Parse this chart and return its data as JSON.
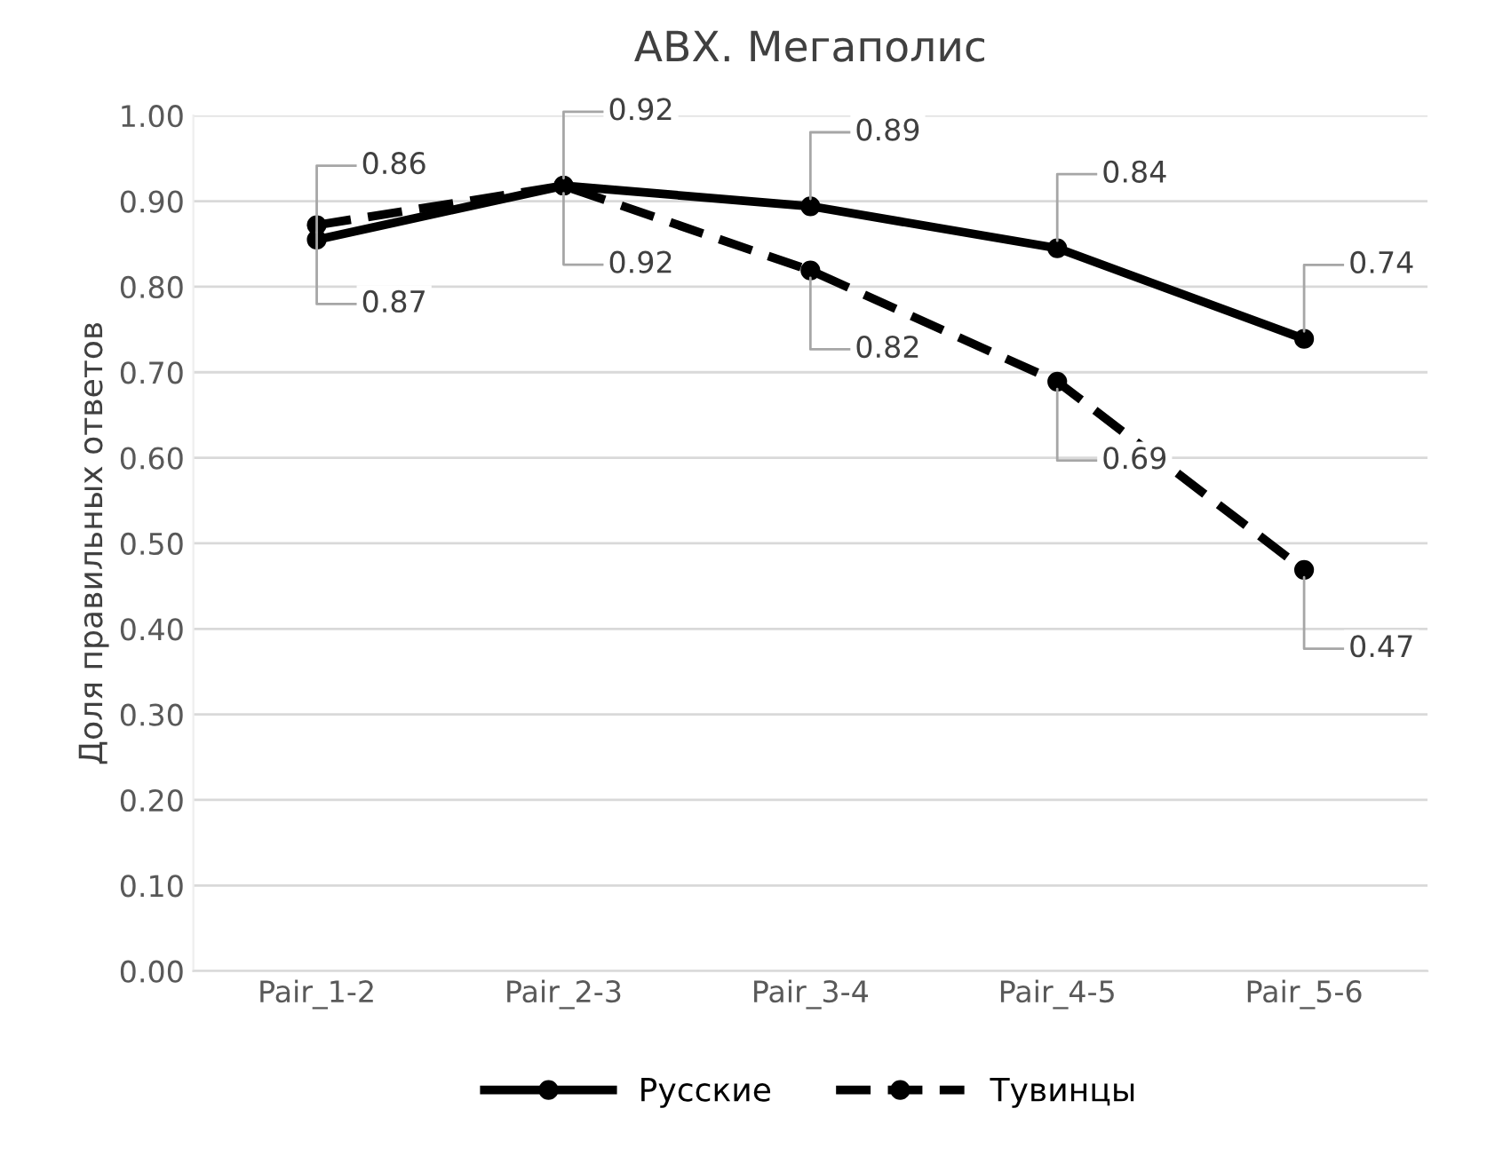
{
  "chart_data": {
    "type": "line",
    "title": "ABX. Мегаполис",
    "ylabel": "Доля правильных ответов",
    "categories": [
      "Pair_1-2",
      "Pair_2-3",
      "Pair_3-4",
      "Pair_4-5",
      "Pair_5-6"
    ],
    "series": [
      {
        "name": "Русские",
        "color": "#000000",
        "line_style": "solid",
        "values": [
          0.855,
          0.918,
          0.894,
          0.845,
          0.739
        ],
        "value_labels": [
          "0.86",
          "0.92",
          "0.89",
          "0.84",
          "0.74"
        ]
      },
      {
        "name": "Тувинцы",
        "color": "#000000",
        "line_style": "dashed",
        "values": [
          0.872,
          0.918,
          0.819,
          0.689,
          0.469
        ],
        "value_labels": [
          "0.87",
          "0.92",
          "0.82",
          "0.69",
          "0.47"
        ]
      }
    ],
    "ylim": [
      0,
      1
    ],
    "yticks": [
      {
        "value": 0,
        "label": "0.00"
      },
      {
        "value": 0.1,
        "label": "0.10"
      },
      {
        "value": 0.2,
        "label": "0.20"
      },
      {
        "value": 0.3,
        "label": "0.30"
      },
      {
        "value": 0.4,
        "label": "0.40"
      },
      {
        "value": 0.5,
        "label": "0.50"
      },
      {
        "value": 0.6,
        "label": "0.60"
      },
      {
        "value": 0.7,
        "label": "0.70"
      },
      {
        "value": 0.8,
        "label": "0.80"
      },
      {
        "value": 0.9,
        "label": "0.90"
      },
      {
        "value": 1.0,
        "label": "1.00"
      }
    ],
    "grid": "y",
    "legend": "bottom",
    "marker": "circle"
  }
}
